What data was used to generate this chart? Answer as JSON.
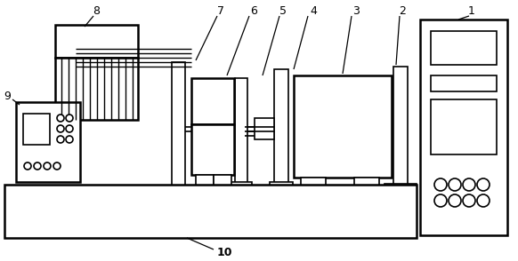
{
  "bg_color": "#ffffff",
  "line_color": "#000000",
  "figsize": [
    5.82,
    2.94
  ],
  "dpi": 100
}
